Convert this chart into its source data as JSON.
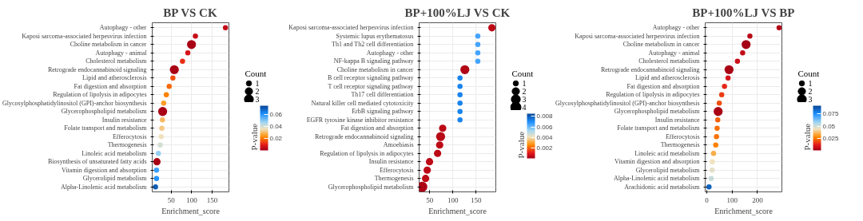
{
  "chart_data": [
    {
      "type": "bubble",
      "title": "BP VS CK",
      "xlabel": "Enrichment_score",
      "orientation": "horizontal",
      "legend_title": "Count",
      "clabel": "P-value",
      "grid": true,
      "categories": [
        "Autophagy - other",
        "Kaposi sarcoma-associated herpesvirus infection",
        "Choline metabolism in cancer",
        "Autophagy - animal",
        "Cholesterol metabolism",
        "Retrograde endocannabinoid signaling",
        "Lipid and atherosclerosis",
        "Fat digestion and absorption",
        "Regulation of lipolysis in adipocytes",
        "Glycosylphosphatidylinositol (GPI)-anchor biosynthesis",
        "Glycerophospholipid metabolism",
        "Insulin resistance",
        "Folate transport and metabolism",
        "Efferocytosis",
        "Thermogenesis",
        "Linoleic acid metabolism",
        "Biosynthesis of unsaturated fatty acids",
        "Vitamin digestion and absorption",
        "Glycerolipid metabolism",
        "Alpha-Linolenic acid metabolism"
      ],
      "values": [
        182.5,
        109,
        99.5,
        90.5,
        77.5,
        57.5,
        54,
        45,
        38,
        31.5,
        29,
        28.5,
        27,
        25.5,
        23,
        18.5,
        15,
        14,
        14,
        11.5
      ],
      "sizes": [
        1,
        1,
        3,
        1,
        1,
        3,
        1,
        1,
        1,
        1,
        3,
        1,
        1,
        1,
        1,
        1,
        2,
        1,
        1,
        1
      ],
      "cvalues": [
        0.005,
        0.006,
        0.002,
        0.008,
        0.012,
        0.002,
        0.016,
        0.019,
        0.022,
        0.026,
        0.002,
        0.03,
        0.032,
        0.036,
        0.04,
        0.048,
        0.002,
        0.058,
        0.06,
        0.07
      ],
      "size_legend": [
        1,
        2,
        3
      ],
      "clim": [
        0.001,
        0.074
      ],
      "cticks": [
        0.02,
        0.04,
        0.06
      ],
      "xlim": [
        3.5,
        191
      ],
      "xticks": [
        50,
        100,
        150
      ]
    },
    {
      "type": "bubble",
      "title": "BP+100%LJ VS CK",
      "xlabel": "Enrichment_score",
      "orientation": "horizontal",
      "legend_title": "Count",
      "clabel": "P-value",
      "grid": true,
      "categories": [
        "Kaposi sarcoma-associated herpesvirus infection",
        "Systemic lupus erythematosus",
        "Th1 and Th2 cell differentiation",
        "Autophagy - other",
        "NF-kappa B signaling pathway",
        "Choline metabolism in cancer",
        "B cell receptor signaling pathway",
        "T cell receptor signaling pathway",
        "Th17 cell differentiation",
        "Natural killer cell mediated cytotoxicity",
        "ErbB signaling pathway",
        "EGFR tyrosine kinase inhibitor resistance",
        "Fat digestion and absorption",
        "Retrograde endocannabinoid signaling",
        "Amoebiasis",
        "Regulation of lipolysis in adipocytes",
        "Insulin resistance",
        "Efferocytosis",
        "Thermogenesis",
        "Glycerophospholipid metabolism"
      ],
      "values": [
        184.5,
        154,
        154,
        154,
        154,
        126,
        115.5,
        115.5,
        115.5,
        115.5,
        115.5,
        115.5,
        78,
        73.5,
        71.5,
        67,
        49.5,
        44.5,
        41,
        33.5
      ],
      "sizes": [
        2,
        1,
        1,
        1,
        1,
        3,
        1,
        1,
        1,
        1,
        1,
        1,
        2,
        3,
        2,
        2,
        2,
        2,
        2,
        4
      ],
      "cvalues": [
        0.0005,
        0.0065,
        0.0065,
        0.0065,
        0.0065,
        0.0003,
        0.0072,
        0.0072,
        0.0072,
        0.0072,
        0.0072,
        0.0072,
        0.0005,
        0.0004,
        0.0005,
        0.0005,
        0.0005,
        0.0005,
        0.0005,
        0.0002
      ],
      "size_legend": [
        1,
        2,
        3,
        4
      ],
      "clim": [
        5e-05,
        0.0085
      ],
      "cticks": [
        0.002,
        0.004,
        0.006,
        0.008
      ],
      "xlim": [
        27,
        193
      ],
      "xticks": [
        50,
        100,
        150
      ]
    },
    {
      "type": "bubble",
      "title": "BP+100%LJ VS BP",
      "xlabel": "Enrichment_score",
      "orientation": "horizontal",
      "legend_title": "Count",
      "clabel": "P-value",
      "grid": true,
      "categories": [
        "Autophagy - other",
        "Kaposi sarcoma-associated herpesvirus infection",
        "Choline metabolism in cancer",
        "Autophagy - animal",
        "Cholesterol metabolism",
        "Retrograde endocannabinoid signaling",
        "Lipid and atherosclerosis",
        "Fat digestion and absorption",
        "Regulation of lipolysis in adipocytes",
        "Glycosylphosphatidylinositol (GPI)-anchor biosynthesis",
        "Glycerophospholipid metabolism",
        "Insulin resistance",
        "Folate transport and metabolism",
        "Efferocytosis",
        "Thermogenesis",
        "Linoleic acid metabolism",
        "Vitamin digestion and absorption",
        "Glycerolipid metabolism",
        "Alpha-Linolenic acid metabolism",
        "Arachidonic acid metabolism"
      ],
      "values": [
        285,
        170,
        155,
        141.5,
        121,
        88,
        84,
        70,
        59,
        49.5,
        45,
        43.5,
        41,
        38.5,
        35.5,
        27,
        22,
        21.5,
        17.5,
        9
      ],
      "sizes": [
        1,
        1,
        3,
        1,
        1,
        3,
        1,
        1,
        1,
        1,
        3,
        1,
        1,
        1,
        1,
        1,
        1,
        1,
        1,
        1
      ],
      "cvalues": [
        0.004,
        0.005,
        0.001,
        0.006,
        0.008,
        0.002,
        0.009,
        0.014,
        0.017,
        0.02,
        0.002,
        0.022,
        0.024,
        0.025,
        0.027,
        0.035,
        0.045,
        0.047,
        0.052,
        0.085
      ],
      "size_legend": [
        1,
        2,
        3
      ],
      "clim": [
        0.001,
        0.092
      ],
      "cticks": [
        0.025,
        0.05,
        0.075
      ],
      "xlim": [
        -6,
        296
      ],
      "xticks": [
        0,
        100,
        200
      ]
    }
  ]
}
